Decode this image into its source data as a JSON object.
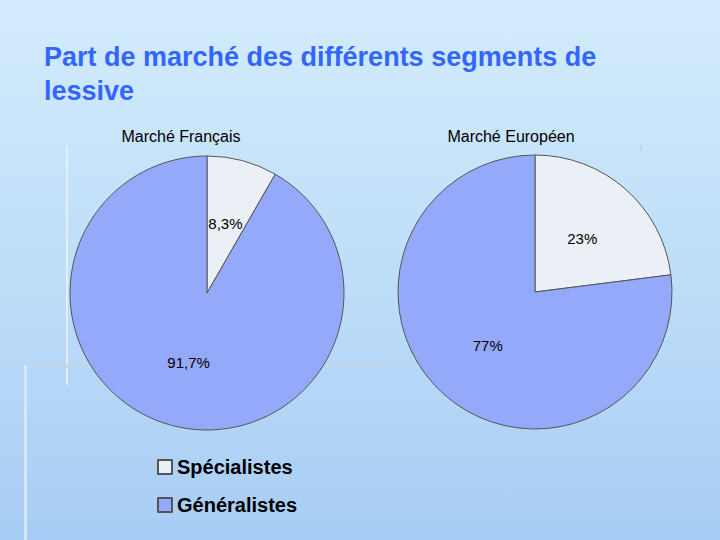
{
  "title": "Part de marché des différents segments de lessive",
  "chart_data": [
    {
      "type": "pie",
      "title": "Marché Français",
      "categories": [
        "Spécialistes",
        "Généralistes"
      ],
      "values": [
        8.3,
        91.7
      ],
      "value_labels": [
        "8,3%",
        "91,7%"
      ],
      "colors": [
        "#eaf0f6",
        "#95a9fb"
      ],
      "data_labels": true,
      "legend": "bottom"
    },
    {
      "type": "pie",
      "title": "Marché Européen",
      "categories": [
        "Spécialistes",
        "Généralistes"
      ],
      "values": [
        23,
        77
      ],
      "value_labels": [
        "23%",
        "77%"
      ],
      "colors": [
        "#eaf0f6",
        "#95a9fb"
      ],
      "data_labels": true
    }
  ]
}
